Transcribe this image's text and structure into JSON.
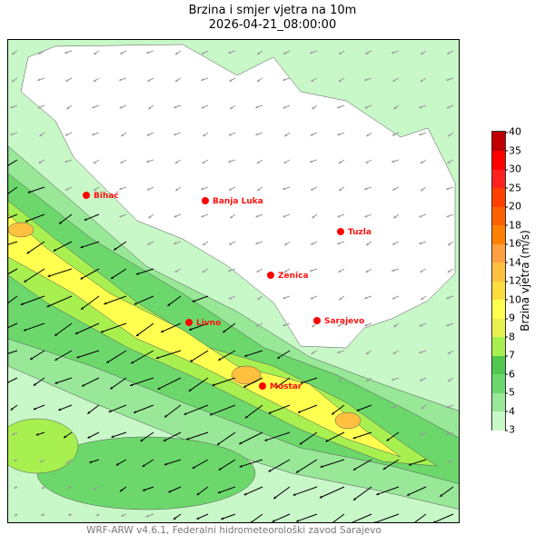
{
  "title": "Brzina i smjer vjetra na 10m",
  "subtitle": "2026-04-21_08:00:00",
  "footer": "WRF-ARW v4.6.1, Federalni hidrometeorološki zavod Sarajevo",
  "colorbar": {
    "label": "Brzina vjetra (m/s)",
    "ticks": [
      "3",
      "4",
      "5",
      "6",
      "7",
      "8",
      "9",
      "10",
      "12",
      "14",
      "16",
      "18",
      "20",
      "25",
      "30",
      "35",
      "40"
    ],
    "colors": [
      "#c8f7c8",
      "#98e898",
      "#6cd86c",
      "#50c850",
      "#a8f050",
      "#e8f050",
      "#ffff50",
      "#ffdc40",
      "#ffc040",
      "#ffa040",
      "#ff8000",
      "#ff6000",
      "#ff4000",
      "#ff2020",
      "#ff0000",
      "#c00000"
    ]
  },
  "cities": [
    {
      "name": "Bihać"
    },
    {
      "name": "Banja Luka"
    },
    {
      "name": "Tuzla"
    },
    {
      "name": "Zenica"
    },
    {
      "name": "Livno"
    },
    {
      "name": "Sarajevo"
    },
    {
      "name": "Mostar"
    }
  ],
  "city_marker_color": "#ff0000"
}
